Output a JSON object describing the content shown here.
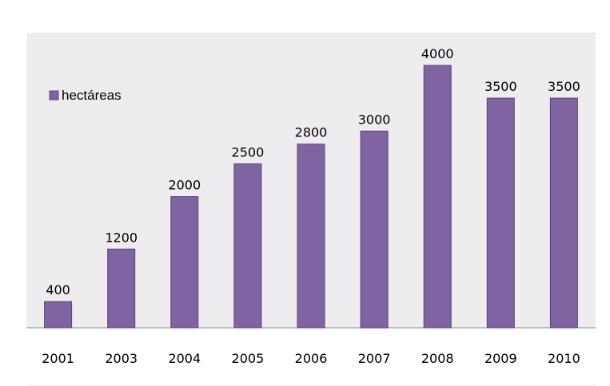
{
  "chart_data": {
    "type": "bar",
    "categories": [
      "2001",
      "2003",
      "2004",
      "2005",
      "2006",
      "2007",
      "2008",
      "2009",
      "2010"
    ],
    "series": [
      {
        "name": "hectáreas",
        "values": [
          400,
          1200,
          2000,
          2500,
          2800,
          3000,
          4000,
          3500,
          3500
        ]
      }
    ],
    "ylim": [
      0,
      4000
    ],
    "legend_position": "left",
    "grid": false,
    "data_labels": true,
    "colors": {
      "bar": "#8064a2",
      "bar_border": "#5b4377",
      "plot_background": "#eeecef",
      "axis": "#888888"
    }
  }
}
